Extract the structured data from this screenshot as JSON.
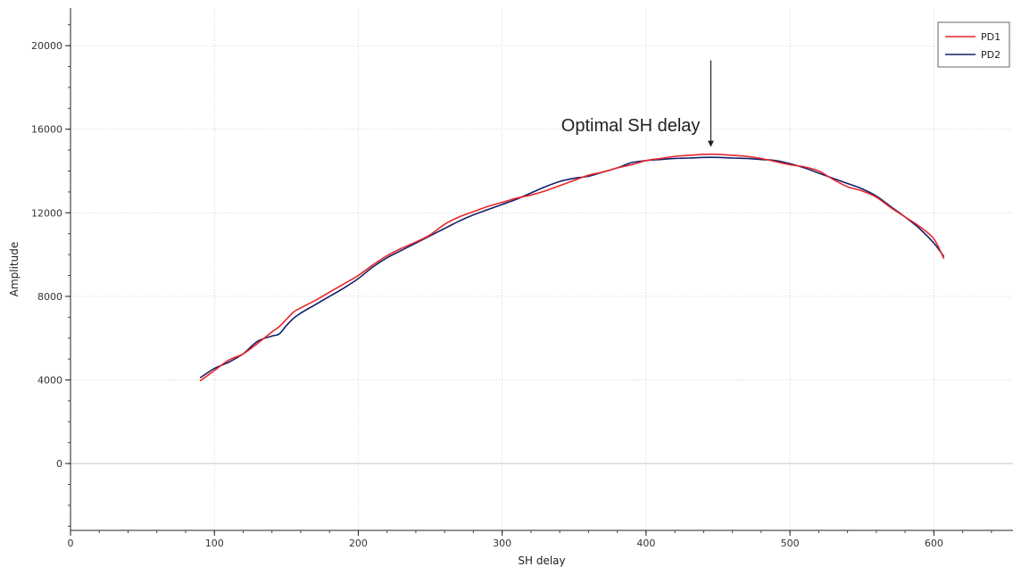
{
  "chart_data": {
    "type": "line",
    "title": "",
    "xlabel": "SH delay",
    "ylabel": "Amplitude",
    "xlim": [
      0,
      655
    ],
    "ylim": [
      -3200,
      21800
    ],
    "x_ticks": [
      0,
      100,
      200,
      300,
      400,
      500,
      600
    ],
    "x_tick_labels": [
      "0",
      "100",
      "200",
      "300",
      "400",
      "500",
      "600"
    ],
    "y_ticks": [
      0,
      4000,
      8000,
      12000,
      16000,
      20000
    ],
    "y_tick_labels": [
      "0",
      "4000",
      "8000",
      "12000",
      "16000",
      "20000"
    ],
    "x_minor_step": 20,
    "y_minor_step": 1000,
    "grid": true,
    "legend_position": "top-right",
    "annotation": {
      "text": "Optimal SH delay",
      "x": 445,
      "y_from": 19300,
      "y_to": 15150
    },
    "series": [
      {
        "name": "PD1",
        "color": "#e8262a",
        "x": [
          90,
          100,
          110,
          120,
          130,
          140,
          145,
          150,
          155,
          160,
          170,
          180,
          190,
          200,
          210,
          220,
          230,
          240,
          250,
          260,
          270,
          280,
          290,
          300,
          310,
          320,
          330,
          340,
          350,
          360,
          370,
          380,
          390,
          400,
          410,
          420,
          430,
          440,
          450,
          460,
          470,
          480,
          490,
          500,
          510,
          520,
          530,
          540,
          550,
          560,
          570,
          580,
          590,
          600,
          607
        ],
        "y": [
          3950,
          4450,
          4950,
          5250,
          5750,
          6300,
          6550,
          6900,
          7250,
          7450,
          7800,
          8200,
          8600,
          9000,
          9500,
          9950,
          10300,
          10600,
          10950,
          11450,
          11800,
          12050,
          12300,
          12500,
          12700,
          12850,
          13050,
          13300,
          13550,
          13800,
          13950,
          14150,
          14300,
          14500,
          14600,
          14700,
          14750,
          14800,
          14800,
          14750,
          14700,
          14600,
          14450,
          14300,
          14200,
          14000,
          13600,
          13250,
          13050,
          12750,
          12250,
          11800,
          11350,
          10750,
          9800
        ]
      },
      {
        "name": "PD2",
        "color": "#13206b",
        "x": [
          90,
          100,
          110,
          120,
          130,
          140,
          145,
          150,
          155,
          160,
          170,
          180,
          190,
          200,
          210,
          220,
          230,
          240,
          250,
          260,
          270,
          280,
          290,
          300,
          310,
          320,
          330,
          340,
          350,
          360,
          370,
          380,
          390,
          400,
          410,
          420,
          430,
          440,
          450,
          460,
          470,
          480,
          490,
          500,
          510,
          520,
          530,
          540,
          550,
          560,
          570,
          580,
          590,
          600,
          607
        ],
        "y": [
          4100,
          4550,
          4850,
          5250,
          5850,
          6100,
          6200,
          6600,
          6950,
          7200,
          7600,
          8000,
          8400,
          8850,
          9400,
          9850,
          10200,
          10550,
          10900,
          11250,
          11600,
          11900,
          12150,
          12400,
          12650,
          12950,
          13250,
          13500,
          13650,
          13750,
          13950,
          14150,
          14400,
          14500,
          14550,
          14600,
          14620,
          14650,
          14650,
          14620,
          14600,
          14550,
          14500,
          14350,
          14150,
          13900,
          13650,
          13400,
          13150,
          12800,
          12300,
          11800,
          11250,
          10550,
          9900
        ]
      }
    ]
  }
}
